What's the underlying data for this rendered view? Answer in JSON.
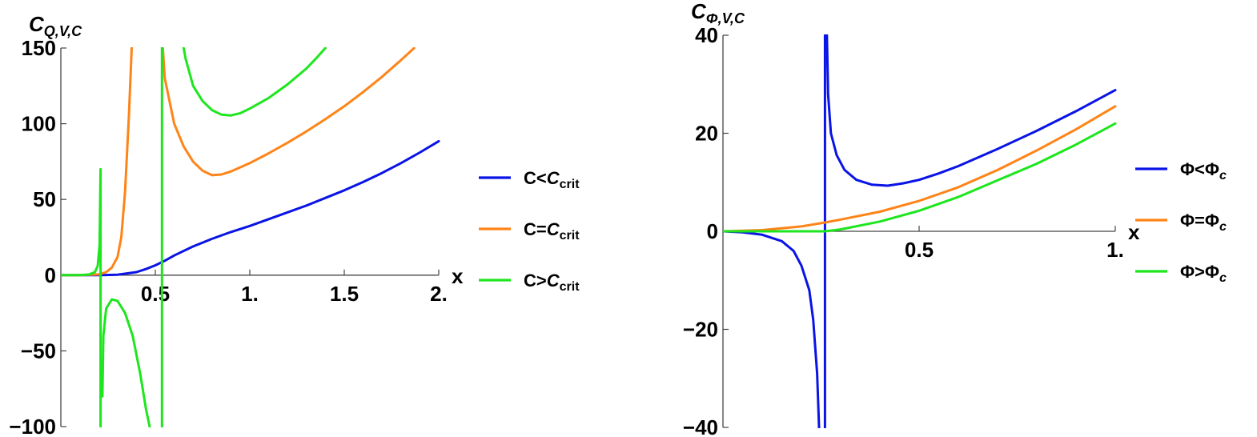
{
  "chart_data": [
    {
      "type": "line",
      "ylabel": {
        "base": "C",
        "sub": "Q,V,C"
      },
      "xlabel": "x",
      "xlim": [
        0,
        2.0
      ],
      "ylim": [
        -100,
        150
      ],
      "x_ticks": [
        {
          "value": 0.5,
          "label": "0.5"
        },
        {
          "value": 1.0,
          "label": "1."
        },
        {
          "value": 1.5,
          "label": "1.5"
        },
        {
          "value": 2.0,
          "label": "2."
        }
      ],
      "y_ticks": [
        {
          "value": -100,
          "label": "−100"
        },
        {
          "value": -50,
          "label": "−50"
        },
        {
          "value": 0,
          "label": "0"
        },
        {
          "value": 50,
          "label": "50"
        },
        {
          "value": 100,
          "label": "100"
        },
        {
          "value": 150,
          "label": "150"
        }
      ],
      "legend_position": "right",
      "series": [
        {
          "name": "C<C_crit",
          "legend": {
            "prefix": "C<",
            "italic": "C",
            "sub": "crit"
          },
          "color": "#0a14e6",
          "segments": [
            [
              [
                0,
                0
              ],
              [
                0.1,
                0
              ],
              [
                0.2,
                0
              ],
              [
                0.3,
                0.3
              ],
              [
                0.4,
                2
              ],
              [
                0.45,
                4
              ],
              [
                0.5,
                6.5
              ],
              [
                0.55,
                9.5
              ],
              [
                0.6,
                13
              ],
              [
                0.7,
                19
              ],
              [
                0.8,
                24
              ],
              [
                0.9,
                28.5
              ],
              [
                1.0,
                32.5
              ],
              [
                1.1,
                37
              ],
              [
                1.2,
                41.5
              ],
              [
                1.3,
                46
              ],
              [
                1.4,
                51
              ],
              [
                1.5,
                56
              ],
              [
                1.6,
                61.5
              ],
              [
                1.7,
                67.5
              ],
              [
                1.8,
                74
              ],
              [
                1.9,
                81
              ],
              [
                2.0,
                88.5
              ]
            ]
          ]
        },
        {
          "name": "C=C_crit",
          "legend": {
            "prefix": "C=",
            "italic": "C",
            "sub": "crit"
          },
          "color": "#ff8418",
          "segments": [
            [
              [
                0,
                0
              ],
              [
                0.1,
                0
              ],
              [
                0.2,
                0.5
              ],
              [
                0.24,
                2
              ],
              [
                0.27,
                5
              ],
              [
                0.3,
                12
              ],
              [
                0.32,
                25
              ],
              [
                0.34,
                55
              ],
              [
                0.36,
                105
              ],
              [
                0.375,
                150
              ]
            ],
            [
              [
                0.54,
                150
              ],
              [
                0.55,
                130
              ],
              [
                0.58,
                112
              ],
              [
                0.6,
                100
              ],
              [
                0.65,
                85
              ],
              [
                0.7,
                75
              ],
              [
                0.75,
                69
              ],
              [
                0.8,
                66
              ],
              [
                0.85,
                66.5
              ],
              [
                0.9,
                68.5
              ],
              [
                1.0,
                74
              ],
              [
                1.1,
                80.5
              ],
              [
                1.2,
                87.5
              ],
              [
                1.3,
                95
              ],
              [
                1.4,
                103
              ],
              [
                1.5,
                111.5
              ],
              [
                1.6,
                121
              ],
              [
                1.7,
                131
              ],
              [
                1.8,
                142
              ],
              [
                1.87,
                150
              ]
            ]
          ]
        },
        {
          "name": "C>C_crit",
          "legend": {
            "prefix": "C>",
            "italic": "C",
            "sub": "crit"
          },
          "color": "#1ee61e",
          "segments": [
            [
              [
                0,
                0
              ],
              [
                0.1,
                0
              ],
              [
                0.15,
                0.5
              ],
              [
                0.18,
                2
              ],
              [
                0.195,
                6
              ],
              [
                0.205,
                20
              ],
              [
                0.21,
                70
              ],
              [
                0.21,
                -100
              ]
            ],
            [
              [
                0.22,
                -80
              ],
              [
                0.225,
                -40
              ],
              [
                0.24,
                -22
              ],
              [
                0.27,
                -16
              ],
              [
                0.3,
                -17
              ],
              [
                0.34,
                -25
              ],
              [
                0.38,
                -40
              ],
              [
                0.42,
                -65
              ],
              [
                0.45,
                -88
              ],
              [
                0.47,
                -100
              ]
            ],
            [
              [
                0.535,
                -100
              ],
              [
                0.535,
                150
              ]
            ],
            [
              [
                0.65,
                150
              ],
              [
                0.66,
                143
              ],
              [
                0.7,
                125
              ],
              [
                0.75,
                115
              ],
              [
                0.8,
                109
              ],
              [
                0.85,
                106
              ],
              [
                0.9,
                105.5
              ],
              [
                0.95,
                107
              ],
              [
                1.0,
                110
              ],
              [
                1.1,
                117
              ],
              [
                1.2,
                126
              ],
              [
                1.3,
                136.5
              ],
              [
                1.35,
                143
              ],
              [
                1.4,
                150
              ]
            ]
          ]
        }
      ]
    },
    {
      "type": "line",
      "ylabel": {
        "base": "C",
        "sub": "Φ,V,C"
      },
      "xlabel": "x",
      "xlim": [
        0,
        1.0
      ],
      "ylim": [
        -40,
        40
      ],
      "x_ticks": [
        {
          "value": 0.5,
          "label": "0.5"
        },
        {
          "value": 1.0,
          "label": "1."
        }
      ],
      "y_ticks": [
        {
          "value": -40,
          "label": "−40"
        },
        {
          "value": -20,
          "label": "−20"
        },
        {
          "value": 0,
          "label": "0"
        },
        {
          "value": 20,
          "label": "20"
        },
        {
          "value": 40,
          "label": "40"
        }
      ],
      "legend_position": "right",
      "series": [
        {
          "name": "Φ<Φc",
          "legend": {
            "prefix": "Φ<Φ",
            "italic": "",
            "sub": "c"
          },
          "color": "#0a14e6",
          "segments": [
            [
              [
                0,
                0
              ],
              [
                0.05,
                -0.2
              ],
              [
                0.1,
                -0.7
              ],
              [
                0.15,
                -2
              ],
              [
                0.18,
                -4
              ],
              [
                0.2,
                -7
              ],
              [
                0.22,
                -12
              ],
              [
                0.23,
                -18
              ],
              [
                0.24,
                -29
              ],
              [
                0.245,
                -40
              ]
            ],
            [
              [
                0.26,
                -40
              ],
              [
                0.26,
                40
              ]
            ],
            [
              [
                0.265,
                40
              ],
              [
                0.268,
                28
              ],
              [
                0.275,
                20
              ],
              [
                0.29,
                15.5
              ],
              [
                0.31,
                12.5
              ],
              [
                0.34,
                10.5
              ],
              [
                0.38,
                9.5
              ],
              [
                0.42,
                9.3
              ],
              [
                0.46,
                9.8
              ],
              [
                0.5,
                10.5
              ],
              [
                0.55,
                11.8
              ],
              [
                0.6,
                13.3
              ],
              [
                0.7,
                16.8
              ],
              [
                0.8,
                20.5
              ],
              [
                0.9,
                24.5
              ],
              [
                1.0,
                28.8
              ]
            ]
          ]
        },
        {
          "name": "Φ=Φc",
          "legend": {
            "prefix": "Φ=Φ",
            "italic": "",
            "sub": "c"
          },
          "color": "#ff8418",
          "segments": [
            [
              [
                0,
                0
              ],
              [
                0.1,
                0.25
              ],
              [
                0.2,
                1
              ],
              [
                0.26,
                1.8
              ],
              [
                0.3,
                2.4
              ],
              [
                0.4,
                4
              ],
              [
                0.5,
                6.2
              ],
              [
                0.6,
                9
              ],
              [
                0.7,
                12.5
              ],
              [
                0.8,
                16.5
              ],
              [
                0.9,
                20.8
              ],
              [
                1.0,
                25.5
              ]
            ]
          ]
        },
        {
          "name": "Φ>Φc",
          "legend": {
            "prefix": "Φ>Φ",
            "italic": "",
            "sub": "c"
          },
          "color": "#1ee61e",
          "segments": [
            [
              [
                0,
                0
              ],
              [
                0.1,
                0
              ],
              [
                0.2,
                0
              ],
              [
                0.26,
                0
              ],
              [
                0.3,
                0.4
              ],
              [
                0.4,
                2
              ],
              [
                0.5,
                4.2
              ],
              [
                0.6,
                7
              ],
              [
                0.7,
                10.4
              ],
              [
                0.8,
                13.8
              ],
              [
                0.9,
                17.7
              ],
              [
                1.0,
                22
              ]
            ]
          ]
        }
      ]
    }
  ]
}
